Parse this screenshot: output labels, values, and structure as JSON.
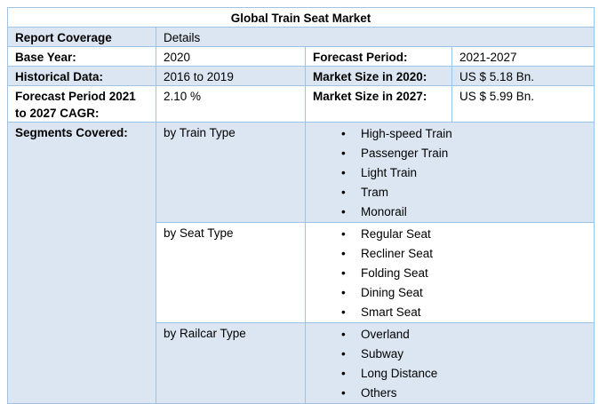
{
  "title": "Global Train Seat Market",
  "coverage": [
    "Report Coverage",
    "Details"
  ],
  "rows": [
    [
      "Base Year:",
      "2020",
      "Forecast Period:",
      "2021-2027"
    ],
    [
      "Historical Data:",
      "2016 to 2019",
      "Market Size in 2020:",
      "US $ 5.18 Bn."
    ],
    [
      "Forecast Period 2021 to 2027 CAGR:",
      "2.10 %",
      "Market Size in 2027:",
      "US $ 5.99 Bn."
    ]
  ],
  "segments": {
    "label": "Segments Covered:",
    "groups": [
      {
        "type": "by Train Type",
        "items": [
          "High-speed Train",
          "Passenger Train",
          "Light Train",
          "Tram",
          "Monorail"
        ]
      },
      {
        "type": "by Seat Type",
        "items": [
          "Regular Seat",
          "Recliner Seat",
          "Folding Seat",
          "Dining Seat",
          "Smart Seat"
        ]
      },
      {
        "type": "by Railcar Type",
        "items": [
          "Overland",
          "Subway",
          "Long Distance",
          "Others"
        ]
      }
    ]
  }
}
